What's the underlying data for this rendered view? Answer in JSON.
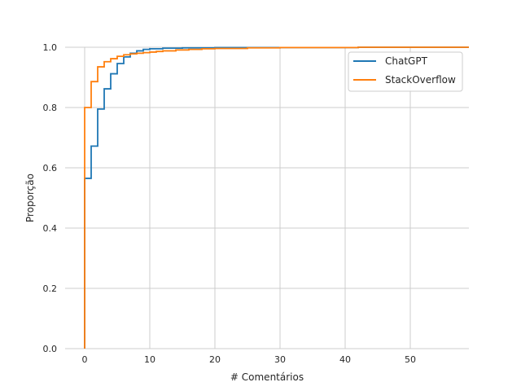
{
  "chart_data": {
    "type": "line",
    "subtype": "ecdf-step",
    "xlabel": "# Comentários",
    "ylabel": "Proporção",
    "xlim": [
      -3,
      59
    ],
    "ylim": [
      0,
      1
    ],
    "xticks": [
      0,
      10,
      20,
      30,
      40,
      50
    ],
    "yticks": [
      0.0,
      0.2,
      0.4,
      0.6,
      0.8,
      1.0
    ],
    "xtick_labels": [
      "0",
      "10",
      "20",
      "30",
      "40",
      "50"
    ],
    "ytick_labels": [
      "0.0",
      "0.2",
      "0.4",
      "0.6",
      "0.8",
      "1.0"
    ],
    "grid": true,
    "legend_position": "top-right",
    "series": [
      {
        "name": "ChatGPT",
        "color": "#1f77b4",
        "x": [
          0,
          1,
          2,
          3,
          4,
          5,
          6,
          7,
          8,
          9,
          10,
          12,
          15,
          20,
          42
        ],
        "y": [
          0.565,
          0.672,
          0.795,
          0.862,
          0.912,
          0.946,
          0.968,
          0.98,
          0.988,
          0.993,
          0.995,
          0.997,
          0.998,
          0.999,
          1.0
        ]
      },
      {
        "name": "StackOverflow",
        "color": "#ff7f0e",
        "x": [
          0,
          1,
          2,
          3,
          4,
          5,
          6,
          7,
          8,
          9,
          10,
          11,
          12,
          14,
          16,
          18,
          20,
          25,
          30,
          42
        ],
        "y": [
          0.8,
          0.886,
          0.935,
          0.952,
          0.962,
          0.97,
          0.975,
          0.978,
          0.98,
          0.982,
          0.984,
          0.986,
          0.988,
          0.991,
          0.993,
          0.995,
          0.996,
          0.998,
          0.999,
          1.0
        ]
      }
    ]
  }
}
